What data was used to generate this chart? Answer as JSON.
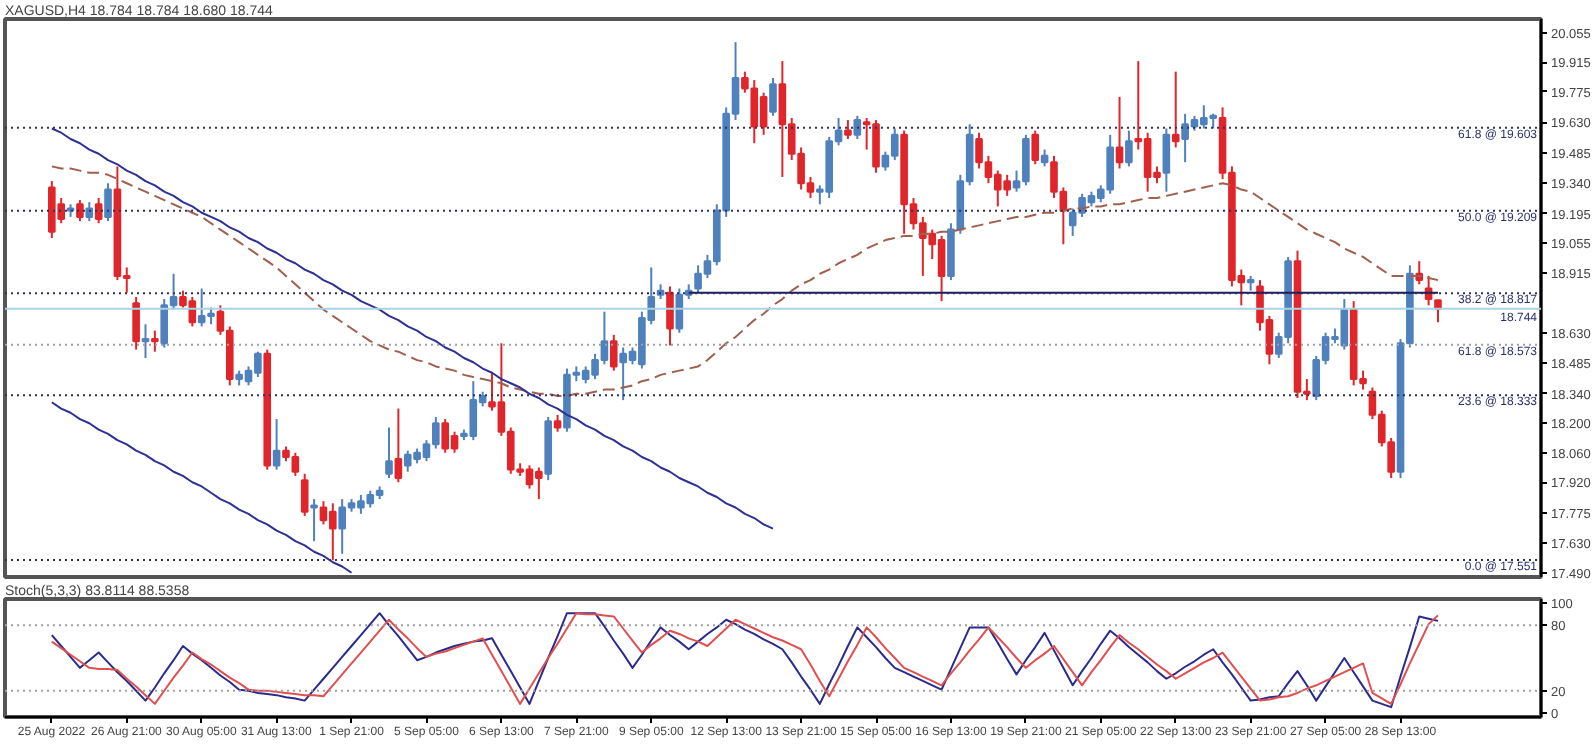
{
  "chart_data": [
    {
      "type": "candlestick",
      "title": "XAGUSD,H4 18.784 18.784 18.680 18.744",
      "tick_labels": "y",
      "categories": [
        null,
        null,
        null,
        null,
        null,
        null,
        null,
        null,
        null,
        null,
        null,
        null,
        null,
        null,
        null,
        null,
        null,
        null,
        null,
        null,
        null,
        null,
        null,
        null,
        null,
        null,
        null,
        null,
        null,
        null,
        null,
        null,
        null,
        null,
        null,
        null,
        null,
        null,
        null,
        null,
        null,
        null,
        null,
        null,
        null,
        null,
        null,
        null,
        null,
        null,
        null,
        null,
        null,
        null,
        null,
        null,
        null,
        null,
        null,
        null,
        null,
        null,
        null,
        null,
        null,
        null,
        null,
        null,
        null,
        null,
        null,
        null,
        null,
        null,
        null,
        null,
        null,
        null,
        null,
        null,
        null,
        null,
        null,
        null,
        null,
        null,
        null,
        null,
        null,
        null,
        null,
        null,
        null,
        null,
        null,
        null,
        null,
        null,
        null,
        null,
        null,
        null,
        null,
        null,
        null,
        null,
        null,
        null,
        null,
        null,
        null,
        null,
        null,
        null,
        null,
        null,
        null,
        null,
        null,
        null,
        null,
        null,
        null,
        null,
        null,
        null,
        null,
        null,
        null,
        null,
        null,
        null,
        null,
        null,
        null,
        null,
        null,
        null,
        null,
        null,
        null,
        null,
        null,
        null,
        null,
        null,
        null,
        null,
        null
      ],
      "ylim": [
        17.47,
        20.12
      ],
      "yticks": [
        20.055,
        19.915,
        19.775,
        {
          "value": 19.63,
          "label": "19.630"
        },
        19.485,
        {
          "value": 19.34,
          "label": "19.340"
        },
        19.195,
        19.055,
        18.915,
        {
          "value": 18.63,
          "label": "18.630"
        },
        18.485,
        {
          "value": 18.34,
          "label": "18.340"
        },
        {
          "value": 18.2,
          "label": "18.200"
        },
        {
          "value": 18.06,
          "label": "18.060"
        },
        {
          "value": 17.92,
          "label": "17.920"
        },
        17.775,
        {
          "value": 17.63,
          "label": "17.630"
        },
        {
          "value": 17.49,
          "label": "17.490"
        }
      ],
      "colors": [
        "#e0262b",
        "#e0262b",
        "#4f81bd",
        "#e0262b",
        "#4f81bd",
        "#e0262b",
        "#4f81bd",
        "#e0262b",
        "#e0262b",
        "#e0262b",
        "#4f81bd",
        "#e0262b",
        "#4f81bd",
        "#4f81bd",
        "#e0262b",
        "#e0262b",
        "#4f81bd",
        "#4f81bd",
        "#e0262b",
        "#e0262b",
        "#4f81bd",
        "#4f81bd",
        "#4f81bd",
        "#e0262b",
        "#4f81bd",
        "#e0262b",
        "#e0262b",
        "#e0262b",
        "#4f81bd",
        "#e0262b",
        "#e0262b",
        "#4f81bd",
        "#4f81bd",
        "#4f81bd",
        "#4f81bd",
        "#4f81bd",
        "#4f81bd",
        "#e0262b",
        "#4f81bd",
        "#4f81bd",
        "#4f81bd",
        "#4f81bd",
        "#e0262b",
        "#e0262b",
        "#4f81bd",
        "#4f81bd",
        "#4f81bd",
        "#e0262b",
        "#e0262b",
        "#e0262b",
        "#e0262b",
        "#e0262b",
        "#e0262b",
        "#4f81bd",
        "#e0262b",
        "#4f81bd",
        "#4f81bd",
        "#4f81bd",
        "#4f81bd",
        "#4f81bd",
        "#e0262b",
        "#4f81bd",
        "#4f81bd",
        "#4f81bd",
        "#4f81bd",
        "#4f81bd",
        "#e0262b",
        "#4f81bd",
        "#4f81bd",
        "#4f81bd",
        "#4f81bd",
        "#4f81bd",
        "#4f81bd",
        "#4f81bd",
        "#e0262b",
        "#e0262b",
        "#e0262b",
        "#4f81bd",
        "#e0262b",
        "#e0262b",
        "#e0262b",
        "#e0262b",
        "#4f81bd",
        "#4f81bd",
        "#4f81bd",
        "#e0262b",
        "#4f81bd",
        "#e0262b",
        "#e0262b",
        "#4f81bd",
        "#4f81bd",
        "#e0262b",
        "#e0262b",
        "#e0262b",
        "#e0262b",
        "#e0262b",
        "#4f81bd",
        "#4f81bd",
        "#4f81bd",
        "#e0262b",
        "#e0262b",
        "#e0262b",
        "#e0262b",
        "#4f81bd",
        "#4f81bd",
        "#e0262b",
        "#4f81bd",
        "#e0262b",
        "#e0262b",
        "#4f81bd",
        "#4f81bd",
        "#4f81bd",
        "#4f81bd",
        "#4f81bd",
        "#e0262b",
        "#4f81bd",
        "#e0262b",
        "#e0262b",
        "#e0262b",
        "#4f81bd",
        "#e0262b",
        "#4f81bd",
        "#4f81bd",
        "#4f81bd",
        "#4f81bd",
        "#e0262b",
        "#e0262b",
        "#e0262b",
        "#4f81bd",
        "#e0262b",
        "#e0262b",
        "#4f81bd",
        "#4f81bd",
        "#e0262b",
        "#e0262b",
        "#4f81bd",
        "#4f81bd",
        "#4f81bd",
        "#4f81bd",
        "#e0262b",
        "#e0262b",
        "#e0262b",
        "#e0262b",
        "#e0262b",
        "#4f81bd",
        "#4f81bd",
        "#e0262b",
        "#e0262b",
        "#e0262b"
      ],
      "ohlc": [
        [
          19.32,
          19.35,
          19.08,
          19.11
        ],
        [
          19.24,
          19.27,
          19.15,
          19.17
        ],
        [
          19.21,
          19.24,
          19.18,
          19.22
        ],
        [
          19.24,
          19.26,
          19.16,
          19.18
        ],
        [
          19.18,
          19.25,
          19.16,
          19.22
        ],
        [
          19.24,
          19.27,
          19.15,
          19.17
        ],
        [
          19.18,
          19.34,
          19.16,
          19.31
        ],
        [
          19.31,
          19.42,
          18.88,
          18.9
        ],
        [
          18.9,
          18.94,
          18.82,
          18.89
        ],
        [
          18.77,
          18.8,
          18.55,
          18.59
        ],
        [
          18.59,
          18.67,
          18.51,
          18.6
        ],
        [
          18.6,
          18.64,
          18.54,
          18.59
        ],
        [
          18.58,
          18.79,
          18.56,
          18.76
        ],
        [
          18.76,
          18.91,
          18.74,
          18.8
        ],
        [
          18.8,
          18.83,
          18.75,
          18.76
        ],
        [
          18.78,
          18.8,
          18.66,
          18.68
        ],
        [
          18.68,
          18.84,
          18.66,
          18.71
        ],
        [
          18.71,
          18.75,
          18.67,
          18.72
        ],
        [
          18.73,
          18.76,
          18.62,
          18.64
        ],
        [
          18.64,
          18.66,
          18.38,
          18.41
        ],
        [
          18.41,
          18.45,
          18.38,
          18.43
        ],
        [
          18.4,
          18.47,
          18.38,
          18.45
        ],
        [
          18.44,
          18.54,
          18.42,
          18.53
        ],
        [
          18.53,
          18.55,
          17.98,
          18.0
        ],
        [
          18.0,
          18.22,
          17.98,
          18.07
        ],
        [
          18.07,
          18.09,
          18.02,
          18.04
        ],
        [
          18.04,
          18.06,
          17.95,
          17.97
        ],
        [
          17.93,
          17.96,
          17.76,
          17.78
        ],
        [
          17.8,
          17.84,
          17.64,
          17.81
        ],
        [
          17.8,
          17.83,
          17.72,
          17.74
        ],
        [
          17.78,
          17.82,
          17.55,
          17.7
        ],
        [
          17.7,
          17.84,
          17.58,
          17.8
        ],
        [
          17.8,
          17.84,
          17.78,
          17.82
        ],
        [
          17.8,
          17.86,
          17.77,
          17.83
        ],
        [
          17.82,
          17.88,
          17.8,
          17.86
        ],
        [
          17.86,
          17.9,
          17.84,
          17.88
        ],
        [
          17.96,
          18.18,
          17.94,
          18.02
        ],
        [
          18.03,
          18.27,
          17.92,
          17.94
        ],
        [
          18.0,
          18.07,
          17.97,
          18.05
        ],
        [
          18.03,
          18.08,
          18.01,
          18.06
        ],
        [
          18.04,
          18.12,
          18.02,
          18.1
        ],
        [
          18.1,
          18.23,
          18.08,
          18.2
        ],
        [
          18.2,
          18.22,
          18.06,
          18.08
        ],
        [
          18.14,
          18.16,
          18.06,
          18.08
        ],
        [
          18.14,
          18.17,
          18.12,
          18.15
        ],
        [
          18.14,
          18.4,
          18.12,
          18.31
        ],
        [
          18.3,
          18.35,
          18.28,
          18.33
        ],
        [
          18.3,
          18.44,
          18.26,
          18.28
        ],
        [
          18.3,
          18.58,
          18.14,
          18.16
        ],
        [
          18.16,
          18.18,
          17.96,
          17.98
        ],
        [
          17.98,
          18.01,
          17.95,
          17.97
        ],
        [
          17.98,
          18.0,
          17.89,
          17.91
        ],
        [
          17.97,
          17.99,
          17.84,
          17.94
        ],
        [
          17.96,
          18.23,
          17.93,
          18.21
        ],
        [
          18.21,
          18.24,
          18.16,
          18.18
        ],
        [
          18.18,
          18.46,
          18.16,
          18.43
        ],
        [
          18.43,
          18.47,
          18.4,
          18.44
        ],
        [
          18.41,
          18.47,
          18.39,
          18.45
        ],
        [
          18.43,
          18.53,
          18.41,
          18.5
        ],
        [
          18.5,
          18.73,
          18.48,
          18.59
        ],
        [
          18.59,
          18.62,
          18.45,
          18.47
        ],
        [
          18.49,
          18.56,
          18.31,
          18.53
        ],
        [
          18.5,
          18.56,
          18.48,
          18.54
        ],
        [
          18.48,
          18.73,
          18.46,
          18.7
        ],
        [
          18.69,
          18.94,
          18.67,
          18.8
        ],
        [
          18.81,
          18.86,
          18.79,
          18.83
        ],
        [
          18.82,
          18.85,
          18.57,
          18.65
        ],
        [
          18.65,
          18.84,
          18.63,
          18.81
        ],
        [
          18.81,
          18.86,
          18.79,
          18.83
        ],
        [
          18.84,
          18.95,
          18.82,
          18.91
        ],
        [
          18.91,
          19.0,
          18.89,
          18.97
        ],
        [
          18.97,
          19.24,
          18.95,
          19.21
        ],
        [
          19.21,
          19.7,
          19.18,
          19.67
        ],
        [
          19.67,
          20.01,
          19.64,
          19.84
        ],
        [
          19.84,
          19.87,
          19.77,
          19.79
        ],
        [
          19.79,
          19.83,
          19.53,
          19.61
        ],
        [
          19.75,
          19.77,
          19.57,
          19.61
        ],
        [
          19.68,
          19.84,
          19.66,
          19.81
        ],
        [
          19.81,
          19.92,
          19.37,
          19.62
        ],
        [
          19.62,
          19.65,
          19.45,
          19.48
        ],
        [
          19.48,
          19.51,
          19.31,
          19.34
        ],
        [
          19.34,
          19.37,
          19.27,
          19.3
        ],
        [
          19.3,
          19.33,
          19.24,
          19.31
        ],
        [
          19.3,
          19.56,
          19.27,
          19.54
        ],
        [
          19.54,
          19.65,
          19.52,
          19.59
        ],
        [
          19.59,
          19.64,
          19.55,
          19.57
        ],
        [
          19.57,
          19.66,
          19.55,
          19.64
        ],
        [
          19.63,
          19.65,
          19.5,
          19.62
        ],
        [
          19.62,
          19.64,
          19.39,
          19.42
        ],
        [
          19.42,
          19.49,
          19.4,
          19.47
        ],
        [
          19.47,
          19.6,
          19.45,
          19.57
        ],
        [
          19.57,
          19.59,
          19.1,
          19.24
        ],
        [
          19.24,
          19.27,
          19.12,
          19.15
        ],
        [
          19.15,
          19.18,
          18.9,
          19.08
        ],
        [
          19.1,
          19.12,
          18.98,
          19.05
        ],
        [
          19.07,
          19.09,
          18.78,
          18.9
        ],
        [
          18.9,
          19.15,
          18.88,
          19.12
        ],
        [
          19.12,
          19.38,
          19.1,
          19.35
        ],
        [
          19.35,
          19.62,
          19.33,
          19.57
        ],
        [
          19.55,
          19.58,
          19.41,
          19.44
        ],
        [
          19.44,
          19.47,
          19.34,
          19.37
        ],
        [
          19.38,
          19.4,
          19.23,
          19.31
        ],
        [
          19.35,
          19.38,
          19.28,
          19.31
        ],
        [
          19.32,
          19.4,
          19.3,
          19.35
        ],
        [
          19.35,
          19.57,
          19.33,
          19.55
        ],
        [
          19.57,
          19.59,
          19.43,
          19.45
        ],
        [
          19.44,
          19.5,
          19.42,
          19.47
        ],
        [
          19.44,
          19.47,
          19.27,
          19.3
        ],
        [
          19.3,
          19.32,
          19.05,
          19.21
        ],
        [
          19.14,
          19.22,
          19.09,
          19.2
        ],
        [
          19.2,
          19.29,
          19.18,
          19.27
        ],
        [
          19.25,
          19.3,
          19.23,
          19.28
        ],
        [
          19.27,
          19.33,
          19.25,
          19.31
        ],
        [
          19.31,
          19.57,
          19.29,
          19.51
        ],
        [
          19.51,
          19.75,
          19.41,
          19.44
        ],
        [
          19.44,
          19.59,
          19.42,
          19.54
        ],
        [
          19.55,
          19.92,
          19.5,
          19.54
        ],
        [
          19.55,
          19.58,
          19.3,
          19.37
        ],
        [
          19.39,
          19.42,
          19.34,
          19.37
        ],
        [
          19.39,
          19.6,
          19.3,
          19.57
        ],
        [
          19.57,
          19.87,
          19.51,
          19.54
        ],
        [
          19.55,
          19.67,
          19.44,
          19.62
        ],
        [
          19.61,
          19.66,
          19.59,
          19.64
        ],
        [
          19.62,
          19.71,
          19.6,
          19.65
        ],
        [
          19.65,
          19.67,
          19.6,
          19.66
        ],
        [
          19.65,
          19.7,
          19.36,
          19.39
        ],
        [
          19.39,
          19.42,
          18.85,
          18.88
        ],
        [
          18.9,
          18.93,
          18.76,
          18.87
        ],
        [
          18.87,
          18.9,
          18.83,
          18.88
        ],
        [
          18.85,
          18.88,
          18.64,
          18.68
        ],
        [
          18.69,
          18.71,
          18.48,
          18.53
        ],
        [
          18.53,
          18.63,
          18.51,
          18.61
        ],
        [
          18.61,
          18.99,
          18.58,
          18.97
        ],
        [
          18.97,
          19.02,
          18.32,
          18.35
        ],
        [
          18.35,
          18.41,
          18.31,
          18.34
        ],
        [
          18.33,
          18.52,
          18.31,
          18.5
        ],
        [
          18.5,
          18.63,
          18.48,
          18.61
        ],
        [
          18.6,
          18.65,
          18.58,
          18.61
        ],
        [
          18.57,
          18.79,
          18.55,
          18.74
        ],
        [
          18.74,
          18.78,
          18.38,
          18.41
        ],
        [
          18.41,
          18.45,
          18.36,
          18.39
        ],
        [
          18.35,
          18.37,
          18.22,
          18.24
        ],
        [
          18.24,
          18.26,
          18.09,
          18.11
        ],
        [
          18.11,
          18.13,
          17.94,
          17.97
        ],
        [
          17.97,
          18.6,
          17.94,
          18.58
        ],
        [
          18.58,
          18.95,
          18.56,
          18.91
        ],
        [
          18.91,
          18.97,
          18.86,
          18.88
        ],
        [
          18.84,
          18.9,
          18.76,
          18.79
        ],
        [
          18.784,
          18.784,
          18.68,
          18.744
        ]
      ],
      "series": [
        {
          "type": "line",
          "color": "#a0604f",
          "line_style": "dashed",
          "values": [
            19.42,
            19.41,
            19.41,
            19.4,
            19.39,
            19.39,
            19.38,
            19.36,
            19.34,
            19.32,
            19.3,
            19.28,
            19.26,
            19.24,
            19.22,
            19.2,
            19.18,
            19.15,
            19.12,
            19.09,
            19.06,
            19.03,
            19.0,
            18.97,
            18.94,
            18.9,
            18.86,
            18.82,
            18.78,
            18.74,
            18.71,
            18.68,
            18.65,
            18.62,
            18.59,
            18.57,
            18.55,
            18.54,
            18.52,
            18.5,
            18.49,
            18.47,
            18.46,
            18.45,
            18.43,
            18.42,
            18.41,
            18.4,
            18.39,
            18.37,
            18.36,
            18.35,
            18.34,
            18.34,
            18.33,
            18.33,
            18.34,
            18.34,
            18.35,
            18.36,
            18.36,
            18.37,
            18.38,
            18.4,
            18.41,
            18.43,
            18.44,
            18.45,
            18.46,
            18.47,
            18.5,
            18.54,
            18.58,
            18.61,
            18.65,
            18.69,
            18.72,
            18.76,
            18.79,
            18.83,
            18.86,
            18.88,
            18.91,
            18.93,
            18.96,
            18.98,
            19.0,
            19.03,
            19.05,
            19.07,
            19.08,
            19.09,
            19.09,
            19.1,
            19.1,
            19.11,
            19.11,
            19.12,
            19.13,
            19.14,
            19.15,
            19.16,
            19.17,
            19.18,
            19.18,
            19.19,
            19.2,
            19.2,
            19.21,
            19.22,
            19.22,
            19.23,
            19.23,
            19.24,
            19.24,
            19.25,
            19.26,
            19.27,
            19.27,
            19.28,
            19.29,
            19.3,
            19.31,
            19.32,
            19.33,
            19.34,
            19.33,
            19.31,
            19.3,
            19.27,
            19.24,
            19.21,
            19.18,
            19.15,
            19.12,
            19.1,
            19.08,
            19.06,
            19.03,
            19.01,
            18.99,
            18.96,
            18.93,
            18.9,
            18.9,
            18.9,
            18.9,
            18.89,
            18.88
          ]
        },
        {
          "type": "line",
          "color": "#2e3192",
          "line_style": "solid",
          "values": [
            19.6,
            19.58,
            19.55,
            19.53,
            19.5,
            19.48,
            19.45,
            19.43,
            19.4,
            19.38,
            19.35,
            19.33,
            19.3,
            19.28,
            19.25,
            19.23,
            19.2,
            19.18,
            19.16,
            19.13,
            19.11,
            19.08,
            19.06,
            19.03,
            19.01,
            18.98,
            18.96,
            18.93,
            18.91,
            18.88,
            18.86,
            18.83,
            18.81,
            18.78,
            18.76,
            18.74,
            18.71,
            18.69,
            18.66,
            18.64,
            18.61,
            18.59,
            18.56,
            18.54,
            18.51,
            18.49,
            18.46,
            18.44,
            18.41,
            18.39,
            18.37,
            18.34,
            18.32,
            18.29,
            18.27,
            18.24,
            18.22,
            18.19,
            18.17,
            18.14,
            18.12,
            18.09,
            18.07,
            18.04,
            18.02,
            17.99,
            17.97,
            17.94,
            17.92,
            17.9,
            17.87,
            17.85,
            17.82,
            17.8,
            17.77,
            17.75,
            17.72,
            17.7,
            null,
            null,
            null,
            null,
            null,
            null,
            null,
            null,
            null,
            null,
            null,
            null,
            null,
            null,
            null,
            null,
            null,
            null,
            null,
            null,
            null,
            null,
            null,
            null,
            null,
            null,
            null,
            null,
            null,
            null,
            null,
            null,
            null,
            null,
            null,
            null,
            null,
            null,
            null,
            null,
            null,
            null,
            null,
            null,
            null,
            null,
            null,
            null,
            null,
            null,
            null,
            null,
            null,
            null,
            null,
            null,
            null,
            null,
            null,
            null,
            null,
            null,
            null,
            null,
            null,
            null,
            null,
            null,
            null,
            null,
            null
          ]
        },
        {
          "type": "line",
          "color": "#2e3192",
          "line_style": "solid",
          "values": [
            18.3,
            18.27,
            18.25,
            18.22,
            18.2,
            18.17,
            18.15,
            18.12,
            18.1,
            18.07,
            18.05,
            18.02,
            18.0,
            17.97,
            17.95,
            17.92,
            17.9,
            17.87,
            17.84,
            17.82,
            17.79,
            17.77,
            17.74,
            17.72,
            17.69,
            17.67,
            17.64,
            17.62,
            17.59,
            17.57,
            17.54,
            17.52,
            17.49,
            null,
            null,
            null,
            null,
            null,
            null,
            null,
            null,
            null,
            null,
            null,
            null,
            null,
            null,
            null,
            null,
            null,
            null,
            null,
            null,
            null,
            null,
            null,
            null,
            null,
            null,
            null,
            null,
            null,
            null,
            null,
            null,
            null,
            null,
            null,
            null,
            null,
            null,
            null,
            null,
            null,
            null,
            null,
            null,
            null,
            null,
            null,
            null,
            null,
            null,
            null,
            null,
            null,
            null,
            null,
            null,
            null,
            null,
            null,
            null,
            null,
            null,
            null,
            null,
            null,
            null,
            null,
            null,
            null,
            null,
            null,
            null,
            null,
            null,
            null,
            null,
            null,
            null,
            null,
            null,
            null,
            null,
            null,
            null,
            null,
            null,
            null,
            null,
            null,
            null,
            null,
            null,
            null,
            null,
            null,
            null,
            null,
            null,
            null,
            null,
            null,
            null,
            null,
            null,
            null,
            null,
            null,
            null,
            null,
            null,
            null,
            null,
            null,
            null,
            null,
            null
          ]
        },
        {
          "type": "line",
          "color": "#1a1a5e",
          "line_style": "solid",
          "values": [
            null,
            null,
            null,
            null,
            null,
            null,
            null,
            null,
            null,
            null,
            null,
            null,
            null,
            null,
            null,
            null,
            null,
            null,
            null,
            null,
            null,
            null,
            null,
            null,
            null,
            null,
            null,
            null,
            null,
            null,
            null,
            null,
            null,
            null,
            null,
            null,
            null,
            null,
            null,
            null,
            null,
            null,
            null,
            null,
            null,
            null,
            null,
            null,
            null,
            null,
            null,
            null,
            null,
            null,
            null,
            null,
            null,
            null,
            null,
            null,
            null,
            null,
            null,
            null,
            null,
            null,
            null,
            null,
            18.82,
            18.82,
            18.82,
            18.82,
            18.82,
            18.82,
            18.82,
            18.82,
            18.82,
            18.82,
            18.82,
            18.82,
            18.82,
            18.82,
            18.82,
            18.82,
            18.82,
            18.82,
            18.82,
            18.82,
            18.82,
            18.82,
            18.82,
            18.82,
            18.82,
            18.82,
            18.82,
            18.82,
            18.82,
            18.82,
            18.82,
            18.82,
            18.82,
            18.82,
            18.82,
            18.82,
            18.82,
            18.82,
            18.82,
            18.82,
            18.82,
            18.82,
            18.82,
            18.82,
            18.82,
            18.82,
            18.82,
            18.82,
            18.82,
            18.82,
            18.82,
            18.82,
            18.82,
            18.82,
            18.82,
            18.82,
            18.82,
            18.82,
            18.82,
            18.82,
            18.82,
            18.82,
            18.82,
            18.82,
            18.82,
            18.82,
            18.82,
            18.82,
            18.82,
            18.82,
            18.82,
            18.82,
            18.82,
            18.82,
            18.82,
            18.82,
            18.82,
            18.82,
            18.82,
            18.82,
            18.82
          ]
        }
      ],
      "ref_lines": [
        {
          "axis": "y",
          "value": 19.603,
          "label": "61.8 @ 19.603",
          "color": "#303060",
          "line_style": "dotted"
        },
        {
          "axis": "y",
          "value": 19.209,
          "label": "50.0 @ 19.209",
          "color": "#303060",
          "line_style": "dotted"
        },
        {
          "axis": "y",
          "value": 18.817,
          "label": "38.2 @ 18.817",
          "color": "#303060",
          "line_style": "dotted"
        },
        {
          "axis": "y",
          "value": 18.744,
          "label": "18.744",
          "color": "#a8d4e6",
          "line_style": "solid"
        },
        {
          "axis": "y",
          "value": 18.573,
          "label": "61.8 @ 18.573",
          "color": "#a0a0a0",
          "line_style": "dotted"
        },
        {
          "axis": "y",
          "value": 18.333,
          "label": "23.6 @ 18.333",
          "color": "#303060",
          "line_style": "dotted"
        },
        {
          "axis": "y",
          "value": 17.551,
          "label": "0.0 @ 17.551",
          "color": "#303060",
          "line_style": "dotted"
        }
      ]
    },
    {
      "type": "line",
      "title": "Stoch(5,3,3) 83.8114 88.5358",
      "categories": [
        "25 Aug 2022",
        null,
        null,
        null,
        null,
        null,
        null,
        null,
        "26 Aug 21:00",
        null,
        null,
        null,
        null,
        null,
        null,
        null,
        "30 Aug 05:00",
        null,
        null,
        null,
        null,
        null,
        null,
        null,
        "31 Aug 13:00",
        null,
        null,
        null,
        null,
        null,
        null,
        null,
        "1 Sep 21:00",
        null,
        null,
        null,
        null,
        null,
        null,
        null,
        "5 Sep 05:00",
        null,
        null,
        null,
        null,
        null,
        null,
        null,
        "6 Sep 13:00",
        null,
        null,
        null,
        null,
        null,
        null,
        null,
        "7 Sep 21:00",
        null,
        null,
        null,
        null,
        null,
        null,
        null,
        "9 Sep 05:00",
        null,
        null,
        null,
        null,
        null,
        null,
        null,
        "12 Sep 13:00",
        null,
        null,
        null,
        null,
        null,
        null,
        null,
        "13 Sep 21:00",
        null,
        null,
        null,
        null,
        null,
        null,
        null,
        "15 Sep 05:00",
        null,
        null,
        null,
        null,
        null,
        null,
        null,
        "16 Sep 13:00",
        null,
        null,
        null,
        null,
        null,
        null,
        null,
        "19 Sep 21:00",
        null,
        null,
        null,
        null,
        null,
        null,
        null,
        "21 Sep 05:00",
        null,
        null,
        null,
        null,
        null,
        null,
        null,
        "22 Sep 13:00",
        null,
        null,
        null,
        null,
        null,
        null,
        null,
        "23 Sep 21:00",
        null,
        null,
        null,
        null,
        null,
        null,
        null,
        "27 Sep 05:00",
        null,
        null,
        null,
        null,
        null,
        null,
        null,
        "28 Sep 13:00",
        null,
        null,
        null,
        null
      ],
      "ylim": [
        -4,
        104
      ],
      "yticks": [
        0,
        20,
        80,
        100
      ],
      "series": [
        {
          "color": "#2b2b8c",
          "values": [
            71,
            61,
            51,
            41,
            48,
            55,
            46,
            37,
            29,
            20,
            11,
            23,
            36,
            48,
            61,
            54,
            48,
            41,
            34,
            28,
            21,
            20,
            18,
            17,
            16,
            14,
            13,
            11,
            21,
            31,
            41,
            51,
            61,
            71,
            81,
            91,
            80,
            70,
            59,
            48,
            51,
            55,
            58,
            61,
            63,
            65,
            66,
            68,
            53,
            38,
            23,
            8,
            29,
            50,
            70,
            91,
            91,
            91,
            91,
            79,
            66,
            54,
            41,
            53,
            66,
            78,
            71,
            65,
            58,
            65,
            72,
            78,
            85,
            81,
            76,
            72,
            67,
            63,
            58,
            46,
            33,
            21,
            8,
            26,
            43,
            61,
            78,
            69,
            60,
            50,
            41,
            37,
            33,
            29,
            25,
            21,
            40,
            59,
            78,
            78,
            78,
            64,
            49,
            35,
            48,
            60,
            73,
            57,
            41,
            25,
            38,
            50,
            63,
            75,
            68,
            60,
            53,
            46,
            38,
            31,
            36,
            42,
            47,
            53,
            58,
            46,
            35,
            23,
            11,
            12,
            14,
            15,
            27,
            38,
            25,
            11,
            24,
            37,
            50,
            37,
            24,
            11,
            8,
            5,
            33,
            60,
            88,
            86,
            84
          ]
        },
        {
          "color": "#e05050",
          "values": [
            65,
            59,
            53,
            47,
            41,
            40,
            40,
            39,
            31,
            24,
            16,
            8,
            20,
            32,
            43,
            55,
            49,
            44,
            38,
            32,
            27,
            21,
            20,
            20,
            19,
            18,
            17,
            16,
            16,
            15,
            25,
            35,
            45,
            55,
            65,
            75,
            85,
            76,
            68,
            59,
            51,
            54,
            56,
            59,
            62,
            65,
            68,
            53,
            38,
            23,
            8,
            22,
            36,
            50,
            63,
            77,
            91,
            90,
            90,
            89,
            88,
            77,
            66,
            55,
            62,
            68,
            75,
            72,
            68,
            65,
            61,
            69,
            77,
            85,
            81,
            77,
            73,
            69,
            66,
            62,
            58,
            44,
            29,
            15,
            31,
            47,
            62,
            78,
            69,
            59,
            50,
            41,
            37,
            33,
            29,
            25,
            36,
            46,
            57,
            67,
            78,
            69,
            60,
            50,
            41,
            48,
            54,
            61,
            49,
            37,
            25,
            37,
            48,
            60,
            71,
            64,
            58,
            51,
            44,
            38,
            31,
            36,
            41,
            46,
            50,
            55,
            44,
            33,
            22,
            11,
            12,
            14,
            15,
            18,
            22,
            25,
            29,
            33,
            37,
            41,
            45,
            18,
            13,
            8,
            26,
            45,
            63,
            81,
            89
          ]
        }
      ],
      "ref_lines": [
        {
          "axis": "y",
          "value": 80,
          "color": "#a0a0a0",
          "line_style": "dotted"
        },
        {
          "axis": "y",
          "value": 20,
          "color": "#a0a0a0",
          "line_style": "dotted"
        }
      ]
    }
  ]
}
